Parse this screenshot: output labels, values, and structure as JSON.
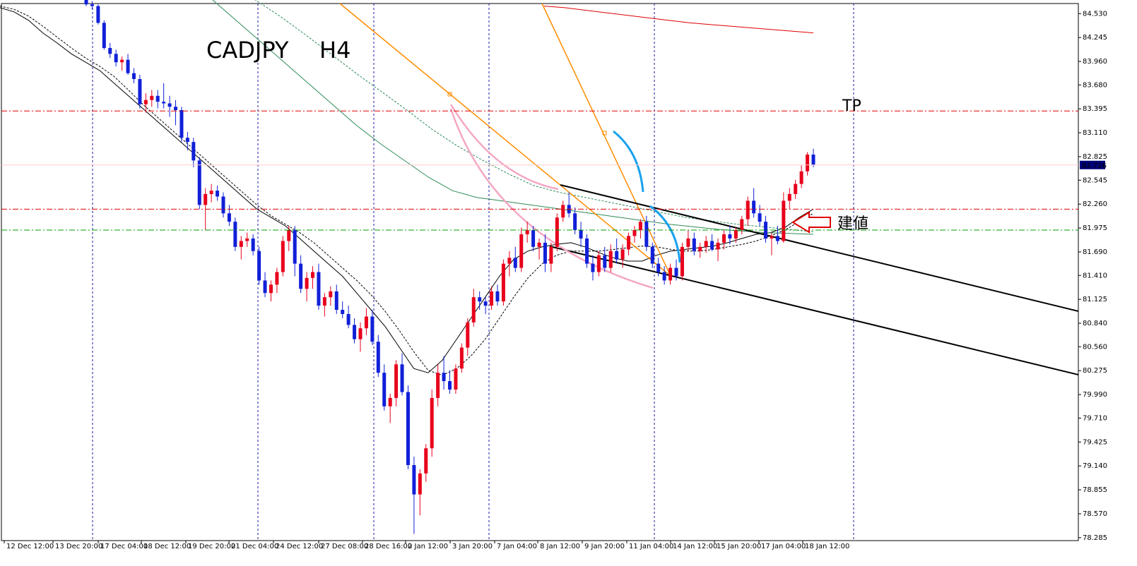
{
  "chart_data": {
    "type": "candlestick",
    "symbol": "CADJPY",
    "timeframe": "H4",
    "y_ticks": [
      84.53,
      84.245,
      83.96,
      83.68,
      83.395,
      83.11,
      82.825,
      82.545,
      82.26,
      81.975,
      81.69,
      81.41,
      81.125,
      80.84,
      80.56,
      80.275,
      79.99,
      79.71,
      79.425,
      79.14,
      78.855,
      78.57,
      78.285
    ],
    "y_tick_labels": [
      "84.530",
      "84.245",
      "83.960",
      "83.680",
      "83.395",
      "83.110",
      "82.825",
      "82.545",
      "82.260",
      "81.975",
      "81.690",
      "81.410",
      "81.125",
      "80.840",
      "80.560",
      "80.275",
      "79.990",
      "79.710",
      "79.425",
      "79.140",
      "78.855",
      "78.570",
      "78.285"
    ],
    "ylim": [
      78.25,
      84.65
    ],
    "current_price": 82.726,
    "current_price_label": "82.726",
    "x_labels": [
      "12 Dec 12:00",
      "13 Dec 20:00",
      "17 Dec 04:00",
      "18 Dec 12:00",
      "19 Dec 20:00",
      "21 Dec 04:00",
      "24 Dec 12:00",
      "27 Dec 08:00",
      "28 Dec 16:00",
      "2 Jan 12:00",
      "3 Jan 20:00",
      "7 Jan 04:00",
      "8 Jan 12:00",
      "9 Jan 20:00",
      "11 Jan 04:00",
      "14 Jan 12:00",
      "15 Jan 20:00",
      "17 Jan 04:00",
      "18 Jan 12:00"
    ],
    "candles": [
      [
        84.72,
        84.76,
        84.62,
        84.64
      ],
      [
        84.64,
        84.68,
        84.58,
        84.62
      ],
      [
        84.62,
        84.64,
        84.4,
        84.42
      ],
      [
        84.42,
        84.45,
        84.1,
        84.12
      ],
      [
        84.12,
        84.18,
        84.0,
        84.05
      ],
      [
        84.05,
        84.1,
        83.9,
        83.95
      ],
      [
        83.95,
        84.02,
        83.85,
        83.98
      ],
      [
        83.98,
        84.05,
        83.8,
        83.82
      ],
      [
        83.82,
        83.88,
        83.7,
        83.75
      ],
      [
        83.75,
        83.8,
        83.4,
        83.45
      ],
      [
        83.45,
        83.58,
        83.35,
        83.5
      ],
      [
        83.5,
        83.62,
        83.42,
        83.55
      ],
      [
        83.55,
        83.62,
        83.4,
        83.48
      ],
      [
        83.48,
        83.7,
        83.4,
        83.46
      ],
      [
        83.46,
        83.55,
        83.3,
        83.42
      ],
      [
        83.42,
        83.5,
        83.2,
        83.38
      ],
      [
        83.38,
        83.42,
        83.0,
        83.05
      ],
      [
        83.05,
        83.12,
        82.9,
        83.0
      ],
      [
        83.0,
        83.05,
        82.7,
        82.78
      ],
      [
        82.78,
        82.82,
        82.2,
        82.25
      ],
      [
        82.25,
        82.45,
        81.95,
        82.38
      ],
      [
        82.38,
        82.5,
        82.28,
        82.42
      ],
      [
        82.42,
        82.48,
        82.3,
        82.35
      ],
      [
        82.35,
        82.4,
        82.1,
        82.15
      ],
      [
        82.15,
        82.25,
        82.0,
        82.05
      ],
      [
        82.05,
        82.1,
        81.7,
        81.75
      ],
      [
        81.75,
        81.88,
        81.6,
        81.82
      ],
      [
        81.82,
        81.92,
        81.75,
        81.85
      ],
      [
        81.85,
        81.9,
        81.65,
        81.7
      ],
      [
        81.7,
        81.75,
        81.3,
        81.35
      ],
      [
        81.35,
        81.45,
        81.15,
        81.2
      ],
      [
        81.2,
        81.35,
        81.1,
        81.3
      ],
      [
        81.3,
        81.5,
        81.2,
        81.45
      ],
      [
        81.45,
        81.88,
        81.4,
        81.82
      ],
      [
        81.82,
        82.0,
        81.7,
        81.95
      ],
      [
        81.95,
        82.0,
        81.4,
        81.55
      ],
      [
        81.55,
        81.65,
        81.2,
        81.25
      ],
      [
        81.25,
        81.45,
        81.1,
        81.38
      ],
      [
        81.38,
        81.52,
        81.25,
        81.45
      ],
      [
        81.45,
        81.55,
        81.0,
        81.05
      ],
      [
        81.05,
        81.2,
        80.92,
        81.15
      ],
      [
        81.15,
        81.28,
        81.05,
        81.22
      ],
      [
        81.22,
        81.3,
        80.95,
        81.0
      ],
      [
        81.0,
        81.1,
        80.9,
        80.95
      ],
      [
        80.95,
        81.05,
        80.78,
        80.82
      ],
      [
        80.82,
        80.9,
        80.6,
        80.65
      ],
      [
        80.65,
        80.85,
        80.5,
        80.78
      ],
      [
        80.78,
        81.02,
        80.7,
        80.92
      ],
      [
        80.92,
        81.0,
        80.58,
        80.62
      ],
      [
        80.62,
        80.7,
        80.2,
        80.25
      ],
      [
        80.25,
        80.35,
        79.8,
        79.85
      ],
      [
        79.85,
        80.0,
        79.65,
        79.95
      ],
      [
        79.95,
        80.4,
        79.85,
        80.35
      ],
      [
        80.35,
        80.48,
        79.98,
        80.02
      ],
      [
        80.02,
        80.1,
        79.1,
        79.15
      ],
      [
        79.15,
        79.25,
        78.33,
        78.8
      ],
      [
        78.8,
        79.1,
        78.55,
        79.05
      ],
      [
        79.05,
        79.4,
        78.95,
        79.35
      ],
      [
        79.35,
        80.05,
        79.25,
        79.95
      ],
      [
        79.95,
        80.35,
        79.85,
        80.25
      ],
      [
        80.25,
        80.45,
        80.05,
        80.15
      ],
      [
        80.15,
        80.28,
        80.0,
        80.05
      ],
      [
        80.05,
        80.35,
        80.0,
        80.3
      ],
      [
        80.3,
        80.6,
        80.25,
        80.55
      ],
      [
        80.55,
        80.9,
        80.45,
        80.85
      ],
      [
        80.85,
        81.25,
        80.8,
        81.15
      ],
      [
        81.15,
        81.22,
        81.0,
        81.1
      ],
      [
        81.1,
        81.15,
        80.95,
        81.05
      ],
      [
        81.05,
        81.28,
        81.0,
        81.22
      ],
      [
        81.22,
        81.3,
        81.05,
        81.1
      ],
      [
        81.1,
        81.6,
        81.05,
        81.55
      ],
      [
        81.55,
        81.7,
        81.4,
        81.62
      ],
      [
        81.62,
        81.75,
        81.45,
        81.5
      ],
      [
        81.5,
        81.98,
        81.45,
        81.9
      ],
      [
        81.9,
        82.05,
        81.8,
        81.95
      ],
      [
        81.95,
        82.0,
        81.7,
        81.75
      ],
      [
        81.75,
        81.85,
        81.6,
        81.8
      ],
      [
        81.8,
        81.9,
        81.45,
        81.55
      ],
      [
        81.55,
        81.8,
        81.45,
        81.75
      ],
      [
        81.75,
        82.15,
        81.7,
        82.1
      ],
      [
        82.1,
        82.3,
        82.05,
        82.25
      ],
      [
        82.25,
        82.4,
        82.1,
        82.15
      ],
      [
        82.15,
        82.22,
        81.9,
        81.95
      ],
      [
        81.95,
        82.05,
        81.75,
        81.85
      ],
      [
        81.85,
        81.9,
        81.5,
        81.55
      ],
      [
        81.55,
        81.65,
        81.35,
        81.45
      ],
      [
        81.45,
        81.7,
        81.4,
        81.65
      ],
      [
        81.65,
        81.75,
        81.45,
        81.5
      ],
      [
        81.5,
        81.78,
        81.45,
        81.7
      ],
      [
        81.7,
        81.85,
        81.55,
        81.6
      ],
      [
        81.6,
        81.78,
        81.5,
        81.72
      ],
      [
        81.72,
        81.92,
        81.65,
        81.88
      ],
      [
        81.88,
        82.0,
        81.8,
        81.95
      ],
      [
        81.95,
        82.08,
        81.85,
        82.05
      ],
      [
        82.05,
        82.12,
        81.7,
        81.75
      ],
      [
        81.75,
        81.8,
        81.5,
        81.55
      ],
      [
        81.55,
        81.62,
        81.4,
        81.45
      ],
      [
        81.45,
        81.52,
        81.3,
        81.35
      ],
      [
        81.35,
        81.55,
        81.3,
        81.5
      ],
      [
        81.5,
        81.6,
        81.35,
        81.4
      ],
      [
        81.4,
        81.8,
        81.35,
        81.75
      ],
      [
        81.75,
        81.95,
        81.7,
        81.85
      ],
      [
        81.85,
        81.92,
        81.65,
        81.7
      ],
      [
        81.7,
        81.8,
        81.62,
        81.75
      ],
      [
        81.75,
        81.88,
        81.68,
        81.82
      ],
      [
        81.82,
        81.9,
        81.7,
        81.72
      ],
      [
        81.72,
        81.85,
        81.58,
        81.8
      ],
      [
        81.8,
        81.95,
        81.72,
        81.9
      ],
      [
        81.9,
        82.0,
        81.78,
        81.85
      ],
      [
        81.85,
        81.98,
        81.8,
        81.95
      ],
      [
        81.95,
        82.12,
        81.9,
        82.08
      ],
      [
        82.08,
        82.35,
        82.0,
        82.3
      ],
      [
        82.3,
        82.45,
        82.1,
        82.15
      ],
      [
        82.15,
        82.25,
        82.0,
        82.05
      ],
      [
        82.05,
        82.12,
        81.8,
        81.85
      ],
      [
        81.85,
        81.92,
        81.65,
        81.88
      ],
      [
        81.88,
        82.0,
        81.78,
        81.82
      ],
      [
        81.82,
        82.4,
        81.8,
        82.3
      ],
      [
        82.3,
        82.45,
        82.2,
        82.38
      ],
      [
        82.38,
        82.55,
        82.32,
        82.5
      ],
      [
        82.5,
        82.72,
        82.45,
        82.65
      ],
      [
        82.65,
        82.88,
        82.6,
        82.85
      ],
      [
        82.85,
        82.92,
        82.7,
        82.73
      ]
    ],
    "moving_averages": [
      {
        "style": "solid",
        "color": "#000000",
        "values": [
          84.6,
          84.55,
          84.45,
          84.3,
          84.18,
          84.05,
          83.95,
          83.85,
          83.7,
          83.55,
          83.4,
          83.25,
          83.1,
          82.95,
          82.8,
          82.65,
          82.5,
          82.35,
          82.2,
          82.1,
          82.0,
          81.85,
          81.7,
          81.55,
          81.4,
          81.2,
          81.0,
          80.8,
          80.55,
          80.3,
          80.25,
          80.4,
          80.65,
          80.9,
          81.15,
          81.4,
          81.6,
          81.7,
          81.75,
          81.78,
          81.8,
          81.75,
          81.68,
          81.62,
          81.58,
          81.58,
          81.65,
          81.7,
          81.72,
          81.74,
          81.76,
          81.8,
          81.85,
          81.9,
          81.92,
          81.98,
          82.1,
          82.2
        ]
      },
      {
        "style": "dashed",
        "color": "#000000",
        "values": [
          84.62,
          84.58,
          84.5,
          84.38,
          84.25,
          84.12,
          84.0,
          83.9,
          83.78,
          83.62,
          83.45,
          83.3,
          83.15,
          83.0,
          82.85,
          82.7,
          82.55,
          82.4,
          82.25,
          82.12,
          82.02,
          81.92,
          81.8,
          81.65,
          81.5,
          81.35,
          81.18,
          80.98,
          80.75,
          80.5,
          80.28,
          80.22,
          80.3,
          80.45,
          80.65,
          80.9,
          81.15,
          81.38,
          81.55,
          81.65,
          81.7,
          81.7,
          81.7,
          81.72,
          81.74,
          81.76,
          81.75,
          81.72,
          81.7,
          81.7,
          81.72,
          81.75,
          81.78,
          81.82,
          81.88,
          81.95,
          82.05,
          82.15
        ]
      },
      {
        "style": "solid",
        "color": "#2e8b57",
        "values": [
          84.7,
          84.45,
          84.2,
          83.95,
          83.7,
          83.45,
          83.2,
          82.98,
          82.78,
          82.58,
          82.42,
          82.34,
          82.3,
          82.26,
          82.22,
          82.18,
          82.14,
          82.1,
          82.06,
          82.02,
          81.99,
          81.96,
          81.94,
          81.92,
          81.91,
          81.9
        ]
      },
      {
        "style": "dashed",
        "color": "#2e8b57",
        "values": [
          84.7,
          84.5,
          84.28,
          84.05,
          83.82,
          83.6,
          83.38,
          83.15,
          82.95,
          82.78,
          82.62,
          82.48,
          82.4,
          82.34,
          82.28,
          82.22,
          82.16,
          82.1,
          82.06,
          82.02,
          81.99,
          81.96,
          81.93
        ]
      },
      {
        "style": "solid",
        "color": "#e00000",
        "values": [
          84.62,
          84.6,
          84.57,
          84.54,
          84.51,
          84.48,
          84.45,
          84.42,
          84.4,
          84.38,
          84.36,
          84.34,
          84.32,
          84.3
        ]
      }
    ],
    "horizontal_lines": [
      {
        "price": 83.37,
        "color": "#e00000",
        "style": "dashdot",
        "label": "TP"
      },
      {
        "price": 82.2,
        "color": "#e00000",
        "style": "dashdot",
        "label": ""
      },
      {
        "price": 81.95,
        "color": "#00a000",
        "style": "dashdot",
        "label": ""
      },
      {
        "price": 82.726,
        "color": "#ffcccc",
        "style": "solid",
        "label": ""
      }
    ],
    "annotations": {
      "title": "CADJPY",
      "timeframe_label": "H4",
      "tp_label": "TP",
      "entry_label": "建値"
    }
  }
}
